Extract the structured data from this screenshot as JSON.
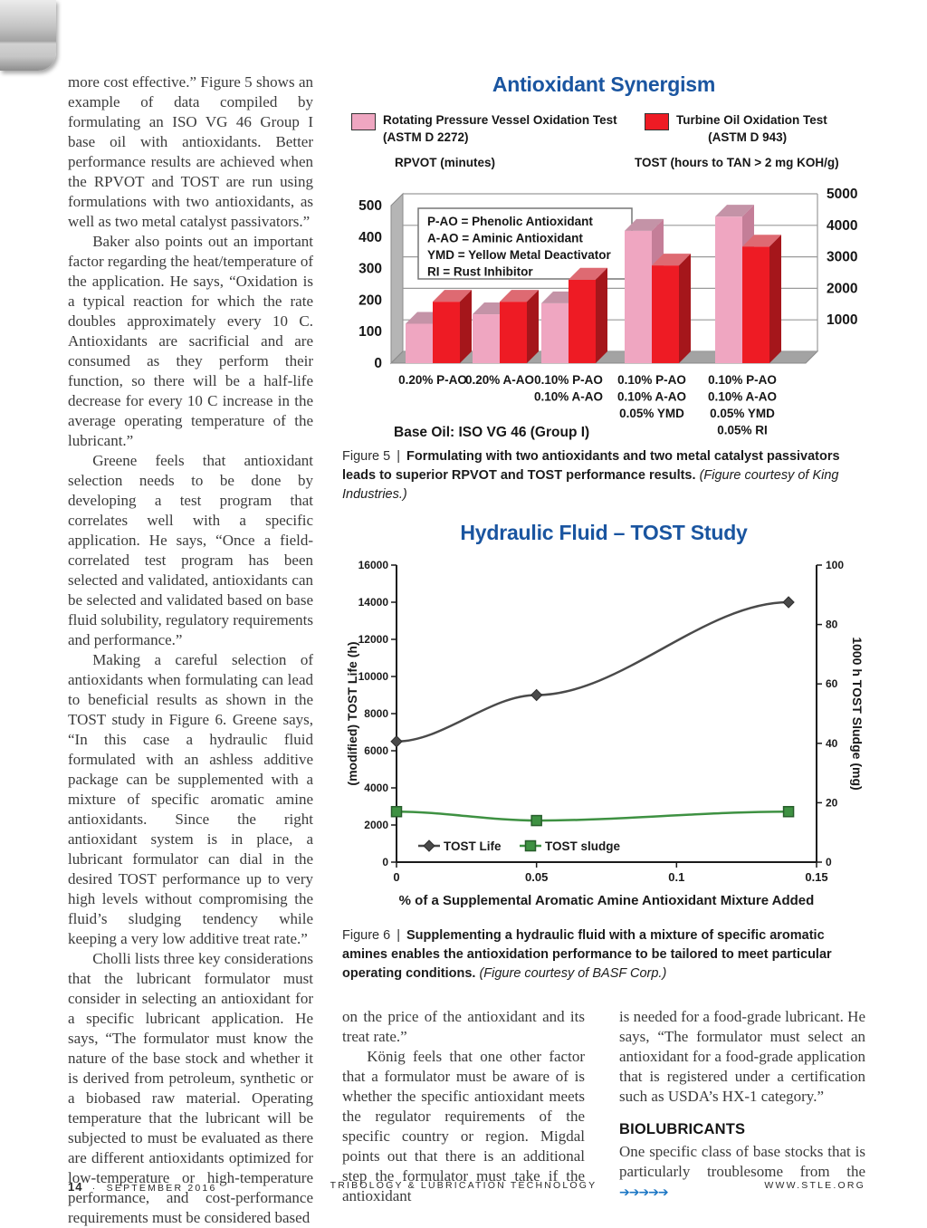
{
  "page": {
    "continuation_arrows": "➔➔➔➔➔",
    "footer": {
      "page_number": "14",
      "separator": "·",
      "issue": "SEPTEMBER 2016",
      "journal": "TRIBOLOGY & LUBRICATION TECHNOLOGY",
      "website": "WWW.STLE.ORG"
    }
  },
  "columns": {
    "left": [
      {
        "type": "p",
        "indent": false,
        "text": "more cost effective.” Figure 5 shows an example of data compiled by formulating an ISO VG 46 Group I base oil with antioxidants. Better performance results are achieved when the RPVOT and TOST are run using formulations with two antioxidants, as well as two metal catalyst passivators.”"
      },
      {
        "type": "p",
        "indent": true,
        "text": "Baker also points out an important factor regarding the heat/temperature of the application. He says, “Oxidation is a typical reaction for which the rate doubles approximately every 10 C. Antioxidants are sacrificial and are consumed as they perform their function, so there will be a half-life decrease for every 10 C increase in the average operating temperature of the lubricant.”"
      },
      {
        "type": "p",
        "indent": true,
        "text": "Greene feels that antioxidant selection needs to be done by developing a test program that correlates well with a specific application. He says, “Once a field-correlated test program has been selected and validated, antioxidants can be selected and validated based on base fluid solubility, regulatory requirements and performance.”"
      },
      {
        "type": "p",
        "indent": true,
        "text": "Making a careful selection of antioxidants when formulating can lead to beneficial results as shown in the TOST study in Figure 6. Greene says, “In this case a hydraulic fluid formulated with an ashless additive package can be supplemented with a mixture of specific aromatic amine antioxidants. Since the right antioxidant system is in place, a lubricant formulator can dial in the desired TOST performance up to very high levels without compromising the fluid’s sludging tendency while keeping a very low additive treat rate.”"
      },
      {
        "type": "p",
        "indent": true,
        "text": "Cholli lists three key considerations that the lubricant formulator must consider in selecting an antioxidant for a specific lubricant application. He says, “The formulator must know the nature of the base stock and whether it is derived from petroleum, synthetic or a biobased raw material. Operating temperature that the lubricant will be subjected to must be evaluated as there are different antioxidants optimized for low-temperature or high-temperature performance, and cost-performance requirements must be considered based"
      }
    ],
    "middle": [
      {
        "type": "p",
        "indent": false,
        "text": "on the price of the antioxidant and its treat rate.”"
      },
      {
        "type": "p",
        "indent": true,
        "text": "König feels that one other factor that a formulator must be aware of is whether the specific antioxidant meets the regulator requirements of the specific country or region. Migdal points out that there is an additional step the formulator must take if the antioxidant"
      }
    ],
    "right": [
      {
        "type": "p",
        "indent": false,
        "text": "is needed for a food-grade lubricant. He says, “The formulator must select an antioxidant for a food-grade application that is registered under a certification such as USDA’s HX-1 category.”"
      },
      {
        "type": "heading",
        "text": "BIOLUBRICANTS"
      },
      {
        "type": "p",
        "indent": false,
        "arrows": true,
        "text": "One specific class of base stocks that is particularly troublesome from the "
      }
    ]
  },
  "figure5_caption": {
    "label": "Figure 5",
    "sep": "|",
    "bold": "Formulating with two antioxidants and two metal catalyst passivators leads to superior RPVOT and TOST performance results.",
    "italic": "(Figure courtesy of King Industries.)"
  },
  "figure6_caption": {
    "label": "Figure 6",
    "sep": "|",
    "bold": "Supplementing a hydraulic fluid with a mixture of specific aromatic amines enables the antioxidation performance to be tailored to meet particular operating conditions.",
    "italic": "(Figure courtesy of BASF Corp.)"
  },
  "chart_data": [
    {
      "id": "figure5",
      "type": "bar",
      "style": "3d",
      "title": "Antioxidant Synergism",
      "title_color": "#1a55a0",
      "legend": [
        {
          "label": "Rotating Pressure Vessel Oxidation Test",
          "sublabel": "(ASTM D 2272)",
          "color": "#EFA6C1",
          "sub_indent_em": 0
        },
        {
          "label": "Turbine Oil Oxidation Test",
          "sublabel": "(ASTM D 943)",
          "color": "#EE1B24",
          "sub_indent_em": 2.6
        }
      ],
      "left_axis": {
        "label": "RPVOT (minutes)",
        "range": [
          0,
          500
        ],
        "ticks": [
          0,
          100,
          200,
          300,
          400,
          500
        ]
      },
      "right_axis": {
        "label": "TOST (hours to TAN > 2 mg KOH/g)",
        "range": [
          0,
          5000
        ],
        "ticks": [
          1000,
          2000,
          3000,
          4000,
          5000
        ]
      },
      "abbrev_box": [
        "P-AO = Phenolic Antioxidant",
        "A-AO = Aminic  Antioxidant",
        "YMD  = Yellow Metal Deactivator",
        "RI = Rust Inhibitor"
      ],
      "categories": [
        [
          "0.20%  P-AO"
        ],
        [
          "0.20%  A-AO"
        ],
        [
          "0.10%  P-AO",
          "0.10%  A-AO"
        ],
        [
          "0.10%  P-AO",
          "0.10%  A-AO",
          "0.05%  YMD"
        ],
        [
          "0.10%  P-AO",
          "0.10%  A-AO",
          "0.05%  YMD",
          "0.05%  RI"
        ]
      ],
      "series": [
        {
          "name": "RPVOT (minutes)",
          "axis": "left",
          "values": [
            125,
            155,
            190,
            420,
            465
          ],
          "colors": {
            "front": "#EFA6C1",
            "top": "#C493A7",
            "side": "#C47E98"
          }
        },
        {
          "name": "TOST (hours)",
          "axis": "right",
          "values": [
            1950,
            1950,
            2650,
            3100,
            3700
          ],
          "colors": {
            "front": "#EE1B24",
            "top": "#DE6A72",
            "side": "#A5161B"
          }
        }
      ],
      "base_note": "Base Oil:  ISO VG 46 (Group I)",
      "grid": true
    },
    {
      "id": "figure6",
      "type": "line",
      "title": "Hydraulic Fluid – TOST Study",
      "title_color": "#1a55a0",
      "xlabel": "% of a Supplemental Aromatic Amine Antioxidant Mixture Added",
      "x_ticks": [
        0,
        0.05,
        0.1,
        0.15
      ],
      "x_range": [
        0,
        0.15
      ],
      "left_axis": {
        "label": "(modified) TOST Life (h)",
        "range": [
          0,
          16000
        ],
        "tick_step": 2000
      },
      "right_axis": {
        "label": "1000 h TOST Sludge (mg)",
        "range": [
          0,
          100
        ],
        "tick_step": 20
      },
      "series": [
        {
          "name": "TOST Life",
          "axis": "left",
          "marker": "diamond",
          "color": "#4a4a4a",
          "x": [
            0,
            0.05,
            0.14
          ],
          "values": [
            6500,
            9000,
            14000
          ]
        },
        {
          "name": "TOST sludge",
          "axis": "right",
          "marker": "square",
          "color": "#3E9142",
          "x": [
            0,
            0.05,
            0.14
          ],
          "values": [
            17,
            14,
            17
          ]
        }
      ],
      "legend_position": "bottom-inside",
      "grid": false
    }
  ]
}
